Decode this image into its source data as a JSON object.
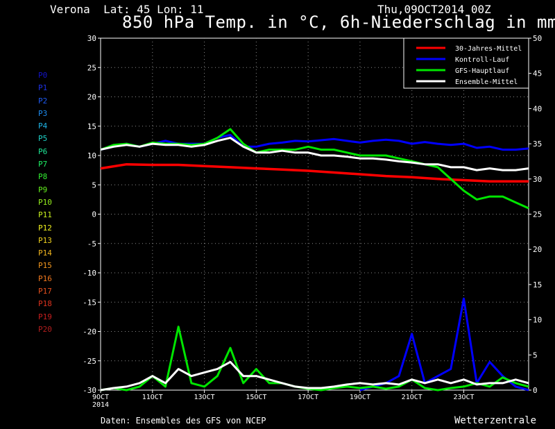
{
  "header": {
    "station": "Verona  Lat: 45 Lon: 11",
    "datetime": "Thu,09OCT2014 00Z",
    "title": "850 hPa Temp. in °C, 6h-Niederschlag in mm"
  },
  "footer": {
    "source": "Daten: Ensembles des GFS von NCEP",
    "brand": "Wetterzentrale"
  },
  "members": [
    {
      "label": "P0",
      "color": "#1414c8"
    },
    {
      "label": "P1",
      "color": "#1e32e6"
    },
    {
      "label": "P2",
      "color": "#1e5af0"
    },
    {
      "label": "P3",
      "color": "#1e8cf0"
    },
    {
      "label": "P4",
      "color": "#1eb4e6"
    },
    {
      "label": "P5",
      "color": "#1ed2c8"
    },
    {
      "label": "P6",
      "color": "#1ee696"
    },
    {
      "label": "P7",
      "color": "#1ef064"
    },
    {
      "label": "P8",
      "color": "#32f032"
    },
    {
      "label": "P9",
      "color": "#64f01e"
    },
    {
      "label": "P10",
      "color": "#96f01e"
    },
    {
      "label": "P11",
      "color": "#c8f01e"
    },
    {
      "label": "P12",
      "color": "#f0f01e"
    },
    {
      "label": "P13",
      "color": "#f0d21e"
    },
    {
      "label": "P14",
      "color": "#f0b41e"
    },
    {
      "label": "P15",
      "color": "#f0961e"
    },
    {
      "label": "P16",
      "color": "#f0781e"
    },
    {
      "label": "P17",
      "color": "#e6501e"
    },
    {
      "label": "P18",
      "color": "#dc321e"
    },
    {
      "label": "P19",
      "color": "#c81e1e"
    },
    {
      "label": "P20",
      "color": "#b41e1e"
    }
  ],
  "legend": [
    {
      "label": "30-Jahres-Mittel",
      "color": "#ff0000"
    },
    {
      "label": "Kontroll-Lauf",
      "color": "#0000ff"
    },
    {
      "label": "GFS-Hauptlauf",
      "color": "#00e600"
    },
    {
      "label": "Ensemble-Mittel",
      "color": "#ffffff"
    }
  ],
  "chart_data": {
    "type": "line",
    "x_unit": "day of October 2014",
    "xlim": [
      9,
      25.5
    ],
    "x_ticks": [
      9,
      11,
      13,
      15,
      17,
      19,
      21,
      23
    ],
    "x_tick_labels": [
      "9OCT",
      "11OCT",
      "13OCT",
      "15OCT",
      "17OCT",
      "19OCT",
      "21OCT",
      "23OCT"
    ],
    "x_first_year_label": "2014",
    "y_left_lim": [
      -30,
      30
    ],
    "y_left_ticks": [
      -30,
      -25,
      -20,
      -15,
      -10,
      -5,
      0,
      5,
      10,
      15,
      20,
      25,
      30
    ],
    "y_right_lim": [
      0,
      50
    ],
    "y_right_ticks": [
      0,
      5,
      10,
      15,
      20,
      25,
      30,
      35,
      40,
      45,
      50
    ],
    "grid": true,
    "legend_position": "top-right",
    "temperature_series": [
      {
        "name": "30-Jahres-Mittel",
        "color": "#ff0000",
        "width": 3.5,
        "x": [
          9,
          10,
          11,
          12,
          13,
          14,
          15,
          16,
          17,
          18,
          19,
          20,
          21,
          22,
          23,
          24,
          25.5
        ],
        "y": [
          7.8,
          8.5,
          8.4,
          8.4,
          8.2,
          8.0,
          7.8,
          7.6,
          7.4,
          7.1,
          6.8,
          6.5,
          6.3,
          6.0,
          5.8,
          5.6,
          5.6
        ]
      },
      {
        "name": "Kontroll-Lauf",
        "color": "#0000ff",
        "width": 3,
        "x": [
          9,
          9.5,
          10,
          10.5,
          11,
          11.5,
          12,
          12.5,
          13,
          13.5,
          14,
          14.5,
          15,
          15.5,
          16,
          16.5,
          17,
          17.5,
          18,
          18.5,
          19,
          19.5,
          20,
          20.5,
          21,
          21.5,
          22,
          22.5,
          23,
          23.5,
          24,
          24.5,
          25,
          25.5
        ],
        "y": [
          11,
          11.5,
          12,
          11.5,
          12,
          12.5,
          12,
          12,
          12,
          13,
          13.5,
          11.5,
          11.5,
          12,
          12.2,
          12.5,
          12.4,
          12.6,
          12.8,
          12.5,
          12.2,
          12.5,
          12.7,
          12.5,
          12,
          12.3,
          12,
          11.8,
          12,
          11.3,
          11.5,
          11,
          11,
          11.2
        ]
      },
      {
        "name": "GFS-Hauptlauf",
        "color": "#00e600",
        "width": 3,
        "x": [
          9,
          9.5,
          10,
          10.5,
          11,
          11.5,
          12,
          12.5,
          13,
          13.5,
          14,
          14.5,
          15,
          15.5,
          16,
          16.5,
          17,
          17.5,
          18,
          18.5,
          19,
          19.5,
          20,
          20.5,
          21,
          21.5,
          22,
          22.5,
          23,
          23.5,
          24,
          24.5,
          25,
          25.5
        ],
        "y": [
          11,
          11.8,
          12,
          11.5,
          12.2,
          12,
          12,
          11.8,
          12,
          13,
          14.5,
          12,
          10.5,
          11,
          11,
          11,
          11.5,
          11,
          11,
          10.5,
          10,
          10,
          10,
          9.5,
          9,
          8.5,
          8,
          6,
          4,
          2.5,
          3,
          3,
          2,
          1
        ]
      },
      {
        "name": "Ensemble-Mittel",
        "color": "#ffffff",
        "width": 3,
        "x": [
          9,
          9.5,
          10,
          10.5,
          11,
          11.5,
          12,
          12.5,
          13,
          13.5,
          14,
          14.5,
          15,
          15.5,
          16,
          16.5,
          17,
          17.5,
          18,
          18.5,
          19,
          19.5,
          20,
          20.5,
          21,
          21.5,
          22,
          22.5,
          23,
          23.5,
          24,
          24.5,
          25,
          25.5
        ],
        "y": [
          11,
          11.5,
          11.8,
          11.5,
          12,
          11.8,
          11.8,
          11.5,
          11.8,
          12.5,
          13,
          11.5,
          10.5,
          10.5,
          10.8,
          10.5,
          10.5,
          10,
          10,
          9.8,
          9.5,
          9.5,
          9.3,
          9,
          8.8,
          8.5,
          8.5,
          8,
          8,
          7.5,
          7.8,
          7.5,
          7.5,
          7.8
        ]
      }
    ],
    "precip_series": [
      {
        "name": "Kontroll-Lauf",
        "color": "#0000ff",
        "width": 3,
        "x": [
          19,
          19.5,
          20,
          20.5,
          21,
          21.5,
          22,
          22.5,
          23,
          23.5,
          24,
          24.5,
          25,
          25.5
        ],
        "y": [
          0,
          0.5,
          1,
          2,
          8,
          1,
          2,
          3,
          13,
          1,
          4,
          2,
          0.5,
          0
        ]
      },
      {
        "name": "GFS-Hauptlauf",
        "color": "#00e600",
        "width": 3,
        "x": [
          9,
          9.5,
          10,
          10.5,
          11,
          11.5,
          12,
          12.5,
          13,
          13.5,
          14,
          14.5,
          15,
          15.5,
          16,
          16.5,
          17,
          17.5,
          18,
          18.5,
          19,
          19.5,
          20,
          20.5,
          21,
          21.5,
          22,
          22.5,
          23,
          23.5,
          24,
          24.5,
          25,
          25.5
        ],
        "y": [
          0,
          0.3,
          0,
          0.5,
          2,
          0.5,
          9,
          1,
          0.5,
          2,
          6,
          1,
          3,
          1,
          1,
          0.5,
          0.2,
          0,
          0.3,
          0.5,
          0.3,
          0.5,
          0.2,
          0.5,
          1.5,
          0.3,
          0,
          0.3,
          0.5,
          1,
          0.5,
          1.8,
          1,
          0.5
        ]
      },
      {
        "name": "Ensemble-Mittel",
        "color": "#ffffff",
        "width": 3,
        "x": [
          9,
          9.5,
          10,
          10.5,
          11,
          11.5,
          12,
          12.5,
          13,
          13.5,
          14,
          14.5,
          15,
          15.5,
          16,
          16.5,
          17,
          17.5,
          18,
          18.5,
          19,
          19.5,
          20,
          20.5,
          21,
          21.5,
          22,
          22.5,
          23,
          23.5,
          24,
          24.5,
          25,
          25.5
        ],
        "y": [
          0,
          0.3,
          0.5,
          1,
          2,
          1,
          3,
          2,
          2.5,
          3,
          4,
          2,
          2,
          1.5,
          1,
          0.5,
          0.3,
          0.3,
          0.5,
          0.8,
          1,
          0.8,
          1,
          0.8,
          1.5,
          1,
          1.5,
          1,
          1.5,
          0.8,
          1,
          1,
          1.5,
          1
        ]
      }
    ]
  }
}
